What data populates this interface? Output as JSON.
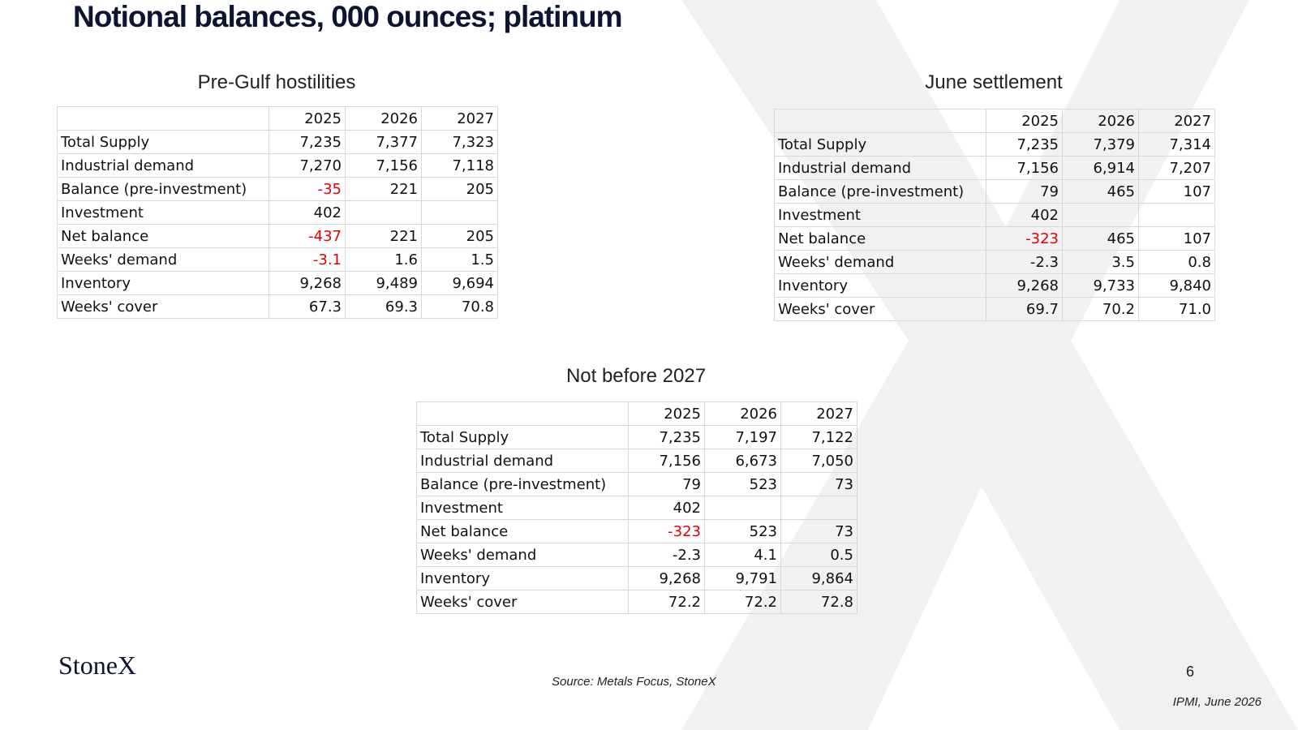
{
  "header": {
    "title": "Notional balances, 000 ounces; platinum"
  },
  "tables": [
    {
      "title": "Pre-Gulf hostilities",
      "columns": [
        "2025",
        "2026",
        "2027"
      ],
      "rows": [
        {
          "label": "Total Supply",
          "values": [
            "7,235",
            "7,377",
            "7,323"
          ]
        },
        {
          "label": "Industrial demand",
          "values": [
            "7,270",
            "7,156",
            "7,118"
          ]
        },
        {
          "label": "Balance (pre-investment)",
          "values": [
            "-35",
            "221",
            "205"
          ],
          "red_columns": [
            0
          ]
        },
        {
          "label": "Investment",
          "values": [
            "402"
          ]
        },
        {
          "label": "Net balance",
          "values": [
            "-437",
            "221",
            "205"
          ],
          "red_columns": [
            0
          ]
        },
        {
          "label": "Weeks' demand",
          "values": [
            "-3.1",
            "1.6",
            "1.5"
          ],
          "red_columns": [
            0
          ]
        },
        {
          "label": "Inventory",
          "values": [
            "9,268",
            "9,489",
            "9,694"
          ]
        },
        {
          "label": "Weeks' cover",
          "values": [
            "67.3",
            "69.3",
            "70.8"
          ]
        }
      ]
    },
    {
      "title": "June settlement",
      "columns": [
        "2025",
        "2026",
        "2027"
      ],
      "rows": [
        {
          "label": "Total Supply",
          "values": [
            "7,235",
            "7,379",
            "7,314"
          ]
        },
        {
          "label": "Industrial demand",
          "values": [
            "7,156",
            "6,914",
            "7,207"
          ]
        },
        {
          "label": "Balance (pre-investment)",
          "values": [
            "79",
            "465",
            "107"
          ]
        },
        {
          "label": "Investment",
          "values": [
            "402"
          ]
        },
        {
          "label": "Net balance",
          "values": [
            "-323",
            "465",
            "107"
          ],
          "red_columns": [
            0
          ]
        },
        {
          "label": "Weeks' demand",
          "values": [
            "-2.3",
            "3.5",
            "0.8"
          ]
        },
        {
          "label": "Inventory",
          "values": [
            "9,268",
            "9,733",
            "9,840"
          ]
        },
        {
          "label": "Weeks' cover",
          "values": [
            "69.7",
            "70.2",
            "71.0"
          ]
        }
      ]
    },
    {
      "title": "Not before 2027",
      "columns": [
        "2025",
        "2026",
        "2027"
      ],
      "rows": [
        {
          "label": "Total Supply",
          "values": [
            "7,235",
            "7,197",
            "7,122"
          ]
        },
        {
          "label": "Industrial demand",
          "values": [
            "7,156",
            "6,673",
            "7,050"
          ]
        },
        {
          "label": "Balance (pre-investment)",
          "values": [
            "79",
            "523",
            "73"
          ]
        },
        {
          "label": "Investment",
          "values": [
            "402"
          ]
        },
        {
          "label": "Net balance",
          "values": [
            "-323",
            "523",
            "73"
          ],
          "red_columns": [
            0
          ]
        },
        {
          "label": "Weeks' demand",
          "values": [
            "-2.3",
            "4.1",
            "0.5"
          ]
        },
        {
          "label": "Inventory",
          "values": [
            "9,268",
            "9,791",
            "9,864"
          ]
        },
        {
          "label": "Weeks' cover",
          "values": [
            "72.2",
            "72.2",
            "72.8"
          ]
        }
      ]
    }
  ],
  "footer": {
    "logo": "StoneX",
    "source": "Source:  Metals Focus, StoneX",
    "page": "6",
    "event": "IPMI, June 2026"
  }
}
